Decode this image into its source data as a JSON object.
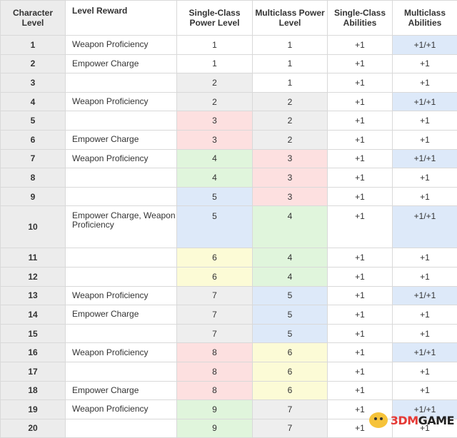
{
  "headers": {
    "level": "Character Level",
    "reward": "Level Reward",
    "single_power": "Single-Class Power Level",
    "multi_power": "Multiclass Power Level",
    "single_abilities": "Single-Class Abilities",
    "multi_abilities": "Multiclass Abilities"
  },
  "colors": {
    "gray": "#eeeeee",
    "pink": "#fde0e0",
    "green": "#e0f5dc",
    "blue": "#dde9f9",
    "yellow": "#fcfbd6",
    "white": "#ffffff"
  },
  "rows": [
    {
      "level": "1",
      "reward": "Weapon Proficiency",
      "sp": "1",
      "sp_color": "white",
      "mp": "1",
      "mp_color": "white",
      "sa": "+1",
      "ma": "+1/+1",
      "ma_color": "blue"
    },
    {
      "level": "2",
      "reward": "Empower Charge",
      "sp": "1",
      "sp_color": "white",
      "mp": "1",
      "mp_color": "white",
      "sa": "+1",
      "ma": "+1",
      "ma_color": "white"
    },
    {
      "level": "3",
      "reward": "",
      "sp": "2",
      "sp_color": "gray",
      "mp": "1",
      "mp_color": "white",
      "sa": "+1",
      "ma": "+1",
      "ma_color": "white"
    },
    {
      "level": "4",
      "reward": "Weapon Proficiency",
      "sp": "2",
      "sp_color": "gray",
      "mp": "2",
      "mp_color": "gray",
      "sa": "+1",
      "ma": "+1/+1",
      "ma_color": "blue"
    },
    {
      "level": "5",
      "reward": "",
      "sp": "3",
      "sp_color": "pink",
      "mp": "2",
      "mp_color": "gray",
      "sa": "+1",
      "ma": "+1",
      "ma_color": "white"
    },
    {
      "level": "6",
      "reward": "Empower Charge",
      "sp": "3",
      "sp_color": "pink",
      "mp": "2",
      "mp_color": "gray",
      "sa": "+1",
      "ma": "+1",
      "ma_color": "white"
    },
    {
      "level": "7",
      "reward": "Weapon Proficiency",
      "sp": "4",
      "sp_color": "green",
      "mp": "3",
      "mp_color": "pink",
      "sa": "+1",
      "ma": "+1/+1",
      "ma_color": "blue"
    },
    {
      "level": "8",
      "reward": "",
      "sp": "4",
      "sp_color": "green",
      "mp": "3",
      "mp_color": "pink",
      "sa": "+1",
      "ma": "+1",
      "ma_color": "white"
    },
    {
      "level": "9",
      "reward": "",
      "sp": "5",
      "sp_color": "blue",
      "mp": "3",
      "mp_color": "pink",
      "sa": "+1",
      "ma": "+1",
      "ma_color": "white"
    },
    {
      "level": "10",
      "reward": "Empower Charge, Weapon Proficiency",
      "sp": "5",
      "sp_color": "blue",
      "mp": "4",
      "mp_color": "green",
      "sa": "+1",
      "ma": "+1/+1",
      "ma_color": "blue",
      "tall": true
    },
    {
      "level": "11",
      "reward": "",
      "sp": "6",
      "sp_color": "yellow",
      "mp": "4",
      "mp_color": "green",
      "sa": "+1",
      "ma": "+1",
      "ma_color": "white"
    },
    {
      "level": "12",
      "reward": "",
      "sp": "6",
      "sp_color": "yellow",
      "mp": "4",
      "mp_color": "green",
      "sa": "+1",
      "ma": "+1",
      "ma_color": "white"
    },
    {
      "level": "13",
      "reward": "Weapon Proficiency",
      "sp": "7",
      "sp_color": "gray",
      "mp": "5",
      "mp_color": "blue",
      "sa": "+1",
      "ma": "+1/+1",
      "ma_color": "blue"
    },
    {
      "level": "14",
      "reward": "Empower Charge",
      "sp": "7",
      "sp_color": "gray",
      "mp": "5",
      "mp_color": "blue",
      "sa": "+1",
      "ma": "+1",
      "ma_color": "white"
    },
    {
      "level": "15",
      "reward": "",
      "sp": "7",
      "sp_color": "gray",
      "mp": "5",
      "mp_color": "blue",
      "sa": "+1",
      "ma": "+1",
      "ma_color": "white"
    },
    {
      "level": "16",
      "reward": "Weapon Proficiency",
      "sp": "8",
      "sp_color": "pink",
      "mp": "6",
      "mp_color": "yellow",
      "sa": "+1",
      "ma": "+1/+1",
      "ma_color": "blue"
    },
    {
      "level": "17",
      "reward": "",
      "sp": "8",
      "sp_color": "pink",
      "mp": "6",
      "mp_color": "yellow",
      "sa": "+1",
      "ma": "+1",
      "ma_color": "white"
    },
    {
      "level": "18",
      "reward": "Empower Charge",
      "sp": "8",
      "sp_color": "pink",
      "mp": "6",
      "mp_color": "yellow",
      "sa": "+1",
      "ma": "+1",
      "ma_color": "white"
    },
    {
      "level": "19",
      "reward": "Weapon Proficiency",
      "sp": "9",
      "sp_color": "green",
      "mp": "7",
      "mp_color": "gray",
      "sa": "+1",
      "ma": "+1/+1",
      "ma_color": "blue"
    },
    {
      "level": "20",
      "reward": "",
      "sp": "9",
      "sp_color": "green",
      "mp": "7",
      "mp_color": "gray",
      "sa": "+1",
      "ma": "+1",
      "ma_color": "white"
    }
  ],
  "watermark": {
    "text_accent": "3DM",
    "text_rest": "GAME"
  }
}
